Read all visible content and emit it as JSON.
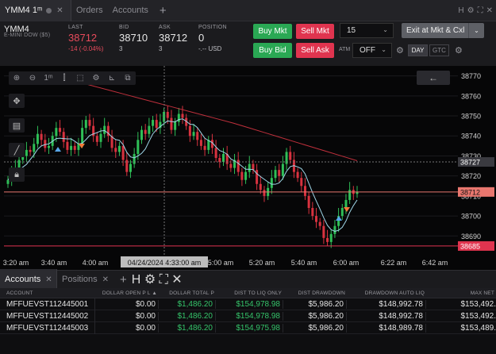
{
  "tabs": {
    "chart_tab": "YMM4 1ᵐ",
    "orders_tab": "Orders",
    "accounts_tab": "Accounts",
    "window_icons": [
      "H",
      "⚙",
      "⛶",
      "✕"
    ]
  },
  "quote": {
    "symbol": "YMM4",
    "description": "E-MINI DOW ($5)",
    "last_label": "LAST",
    "last_value": "38712",
    "last_change": "-14 (-0.04%)",
    "bid_label": "BID",
    "bid_value": "38710",
    "bid_size": "3",
    "ask_label": "ASK",
    "ask_value": "38712",
    "ask_size": "3",
    "position_label": "POSITION",
    "position_value": "0",
    "position_sub": "-.-- USD"
  },
  "trading": {
    "buy_mkt": "Buy Mkt",
    "sell_mkt": "Sell Mkt",
    "buy_bid": "Buy Bid",
    "sell_ask": "Sell Ask",
    "quantity": "15",
    "exit_label": "Exit at Mkt & Cxl",
    "atm_label": "ATM",
    "atm_value": "OFF",
    "day_label": "DAY",
    "gtc_label": "GTC"
  },
  "chart_data": {
    "type": "candlestick",
    "price_ticks": [
      "38770",
      "38760",
      "38750",
      "38740",
      "38730",
      "38720",
      "38710",
      "38700",
      "38690"
    ],
    "time_ticks": [
      "3:20 am",
      "3:40 am",
      "4:00 am",
      "4:33:00 am",
      "5:00 am",
      "5:20 am",
      "5:40 am",
      "6:00 am",
      "6:22 am",
      "6:42 am"
    ],
    "crosshair_time": "04/24/2024 4:33:00 am",
    "crosshair_price": "38727",
    "last_price_tag": "38712",
    "low_price_tag": "38685",
    "ma_slow_color": "#c0303c",
    "ma_fast_color": "#9fd6e8",
    "up_color": "#2fbf57",
    "down_color": "#d8323f",
    "closes": [
      38718,
      38722,
      38724,
      38728,
      38730,
      38733,
      38732,
      38736,
      38741,
      38738,
      38734,
      38735,
      38740,
      38744,
      38742,
      38737,
      38733,
      38735,
      38733,
      38736,
      38744,
      38748,
      38745,
      38740,
      38737,
      38741,
      38745,
      38740,
      38734,
      38732,
      38735,
      38728,
      38722,
      38726,
      38731,
      38738,
      38743,
      38741,
      38745,
      38748,
      38744,
      38747,
      38752,
      38749,
      38743,
      38747,
      38751,
      38749,
      38745,
      38740,
      38742,
      38738,
      38735,
      38733,
      38738,
      38734,
      38729,
      38727,
      38731,
      38726,
      38724,
      38728,
      38722,
      38718,
      38722,
      38726,
      38723,
      38716,
      38713,
      38710,
      38714,
      38719,
      38723,
      38720,
      38726,
      38732,
      38728,
      38722,
      38719,
      38715,
      38710,
      38704,
      38700,
      38697,
      38695,
      38689,
      38687,
      38691,
      38695,
      38700,
      38704,
      38708,
      38713,
      38711,
      38712
    ]
  },
  "accounts": {
    "tab_accounts": "Accounts",
    "tab_positions": "Positions",
    "columns": [
      "ACCOUNT",
      "DOLLAR OPEN P L ▲",
      "DOLLAR TOTAL P",
      "DIST TO LIQ ONLY",
      "DIST DRAWDOWN",
      "DRAWDOWN AUTO LIQ",
      "MAX NET"
    ],
    "rows": [
      [
        "MFFUEVST112445001",
        "$0.00",
        "$1,486.20",
        "$154,978.98",
        "$5,986.20",
        "$148,992.78",
        "$153,492."
      ],
      [
        "MFFUEVST112445002",
        "$0.00",
        "$1,486.20",
        "$154,978.98",
        "$5,986.20",
        "$148,992.78",
        "$153,492."
      ],
      [
        "MFFUEVST112445003",
        "$0.00",
        "$1,486.20",
        "$154,975.98",
        "$5,986.20",
        "$148,989.78",
        "$153,489."
      ]
    ]
  }
}
